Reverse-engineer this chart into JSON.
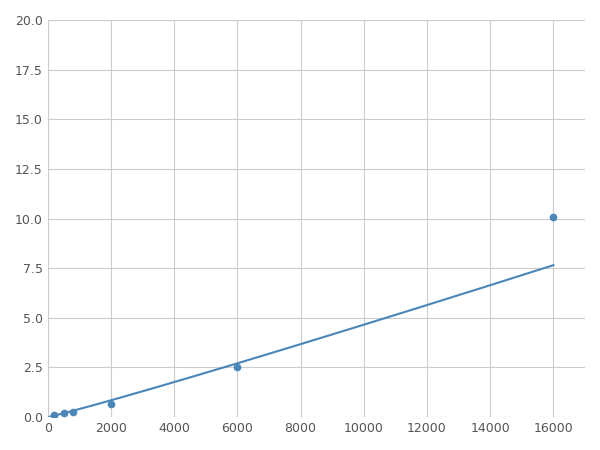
{
  "x_points": [
    200,
    500,
    800,
    2000,
    6000,
    16000
  ],
  "y_points": [
    0.1,
    0.2,
    0.25,
    0.65,
    2.5,
    10.1
  ],
  "line_color": "#4a86b8",
  "marker_color": "#4a86b8",
  "marker_size": 4.5,
  "xlim": [
    0,
    17000
  ],
  "ylim": [
    0,
    20.0
  ],
  "yticks": [
    0.0,
    2.5,
    5.0,
    7.5,
    10.0,
    12.5,
    15.0,
    17.5,
    20.0
  ],
  "xticks": [
    0,
    2000,
    4000,
    6000,
    8000,
    10000,
    12000,
    14000,
    16000
  ],
  "grid_color": "#cccccc",
  "background_color": "#ffffff",
  "linewidth": 1.5
}
